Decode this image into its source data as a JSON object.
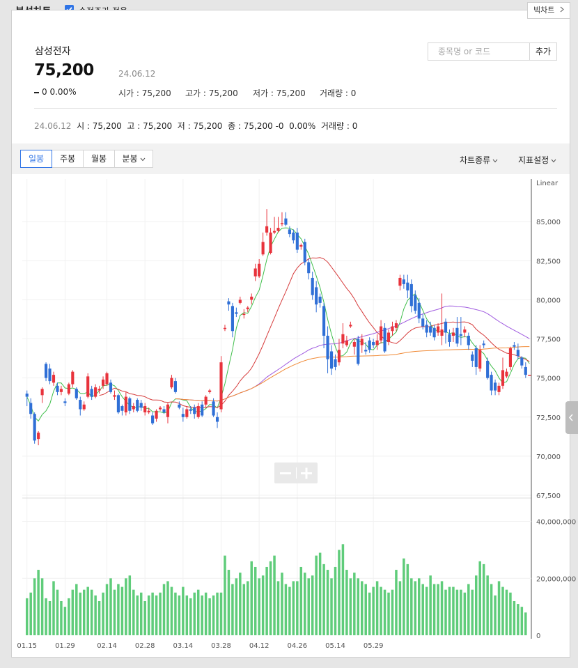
{
  "header": {
    "title": "분석차트",
    "adjusted_label": "수정주가 적용",
    "adjusted_checked": true,
    "big_chart_label": "빅차트"
  },
  "stock": {
    "name": "삼성전자",
    "price": "75,200",
    "date": "24.06.12",
    "change": "0",
    "change_pct": "0.00%",
    "open": "시가 : 75,200",
    "high": "고가 : 75,200",
    "low": "저가 : 75,200",
    "volume": "거래량 : 0"
  },
  "search": {
    "placeholder": "종목명 or 코드",
    "add_label": "추가"
  },
  "info_line": {
    "date": "24.06.12",
    "text": "시 : 75,200  고 : 75,200  저 : 75,200  종 : 75,200 -0  0.00%  거래량 : 0"
  },
  "toolbar": {
    "tabs": [
      "일봉",
      "주봉",
      "월봉",
      "분봉"
    ],
    "active_tab": "일봉",
    "chart_type_label": "차트종류",
    "indicator_label": "지표설정"
  },
  "colors": {
    "up": "#e8333c",
    "down": "#2f6fd6",
    "volume": "#5fcc7a",
    "accent": "#2f74e6"
  },
  "icons": [
    "checkbox-checked-icon",
    "chevron-right-icon",
    "chevron-down-icon",
    "minus-icon",
    "plus-icon",
    "chevron-left-icon"
  ],
  "chart_data": {
    "type": "candlestick",
    "price_scale_label": "Linear",
    "price_ticks": [
      "85,000",
      "82,500",
      "80,000",
      "77,500",
      "75,000",
      "72,500",
      "70,000",
      "67,500"
    ],
    "volume_ticks": [
      "40,000,000",
      "20,000,000",
      "0"
    ],
    "x_labels": [
      "01.15",
      "01.29",
      "02.14",
      "02.28",
      "03.14",
      "03.28",
      "04.12",
      "04.26",
      "05.14",
      "05.29"
    ],
    "candles": [
      [
        74000,
        73800,
        74200,
        73200
      ],
      [
        73400,
        72700,
        73700,
        72400
      ],
      [
        72700,
        71000,
        72800,
        70800
      ],
      [
        71100,
        71500,
        71600,
        70700
      ],
      [
        73900,
        74300,
        74400,
        73400
      ],
      [
        75900,
        75000,
        76000,
        74800
      ],
      [
        75600,
        74800,
        75900,
        74600
      ],
      [
        74700,
        75200,
        75400,
        74500
      ],
      [
        74500,
        74100,
        74700,
        73900
      ],
      [
        74100,
        74300,
        74500,
        73900
      ],
      [
        73500,
        73400,
        73700,
        73200
      ],
      [
        74000,
        74600,
        74700,
        73900
      ],
      [
        74600,
        75400,
        75500,
        74400
      ],
      [
        74300,
        73700,
        74400,
        73600
      ],
      [
        73600,
        73000,
        73800,
        72600
      ],
      [
        73000,
        73300,
        73500,
        72900
      ],
      [
        73800,
        75100,
        75300,
        73700
      ],
      [
        74300,
        73800,
        74500,
        73600
      ],
      [
        73800,
        74400,
        74600,
        73700
      ],
      [
        74200,
        74300,
        74500,
        74000
      ],
      [
        74500,
        74900,
        75100,
        74300
      ],
      [
        74600,
        75300,
        75400,
        74500
      ],
      [
        74700,
        74100,
        74900,
        74000
      ],
      [
        73800,
        73900,
        74200,
        73600
      ],
      [
        73900,
        72800,
        74000,
        72700
      ],
      [
        73200,
        72900,
        73300,
        72600
      ],
      [
        72800,
        73800,
        74100,
        72600
      ],
      [
        73700,
        72900,
        73800,
        72700
      ],
      [
        73000,
        73200,
        73400,
        72800
      ],
      [
        73600,
        72900,
        73700,
        72800
      ],
      [
        73400,
        73100,
        73600,
        72900
      ],
      [
        72800,
        73200,
        73400,
        72600
      ],
      [
        72800,
        72900,
        73100,
        72700
      ],
      [
        72600,
        72100,
        72800,
        72000
      ],
      [
        72400,
        72900,
        73000,
        72200
      ],
      [
        73000,
        73100,
        73200,
        72900
      ],
      [
        73000,
        72800,
        73200,
        72700
      ],
      [
        72500,
        73300,
        73400,
        72100
      ],
      [
        74400,
        75000,
        75200,
        74300
      ],
      [
        74800,
        74100,
        75000,
        74000
      ],
      [
        73300,
        73100,
        73500,
        73000
      ],
      [
        72700,
        72500,
        73100,
        72200
      ],
      [
        72500,
        73000,
        73200,
        72400
      ],
      [
        73000,
        72900,
        73200,
        72700
      ],
      [
        73100,
        72700,
        73300,
        72400
      ],
      [
        72500,
        73200,
        73400,
        72400
      ],
      [
        73300,
        72600,
        73500,
        72500
      ],
      [
        73300,
        73800,
        73900,
        73100
      ],
      [
        74100,
        74200,
        74300,
        74000
      ],
      [
        73500,
        72600,
        73700,
        72500
      ],
      [
        72500,
        72200,
        72800,
        71800
      ],
      [
        73000,
        76000,
        76400,
        72800
      ],
      [
        78200,
        78200,
        78400,
        78000
      ],
      [
        79900,
        79700,
        80100,
        79300
      ],
      [
        79600,
        78000,
        79800,
        77600
      ],
      [
        79200,
        79100,
        79500,
        78900
      ],
      [
        79800,
        80000,
        80200,
        79700
      ],
      [
        79100,
        79100,
        79400,
        78800
      ],
      [
        79400,
        79500,
        79600,
        79200
      ],
      [
        80000,
        80200,
        80400,
        79700
      ],
      [
        81500,
        82000,
        82300,
        81200
      ],
      [
        81500,
        82300,
        82600,
        81400
      ],
      [
        82900,
        83700,
        84300,
        82800
      ],
      [
        84300,
        84700,
        85800,
        84100
      ],
      [
        83000,
        84300,
        84600,
        82900
      ],
      [
        84300,
        84400,
        85300,
        84200
      ],
      [
        84400,
        84600,
        85300,
        84300
      ],
      [
        84900,
        84900,
        85600,
        84700
      ],
      [
        85200,
        84800,
        85600,
        84700
      ],
      [
        84500,
        84200,
        84700,
        84000
      ],
      [
        84300,
        83800,
        84500,
        83600
      ],
      [
        84300,
        83200,
        84600,
        83000
      ],
      [
        83400,
        83500,
        83600,
        83200
      ],
      [
        83700,
        82400,
        83900,
        82200
      ],
      [
        82400,
        81700,
        82600,
        81300
      ],
      [
        81400,
        80300,
        81800,
        80000
      ],
      [
        80800,
        79700,
        81200,
        79200
      ],
      [
        80200,
        79800,
        80400,
        79500
      ],
      [
        79600,
        77700,
        79800,
        76900
      ],
      [
        77700,
        76200,
        78300,
        75300
      ],
      [
        76700,
        75600,
        77100,
        75200
      ],
      [
        76200,
        75700,
        76500,
        75500
      ],
      [
        76000,
        76800,
        77500,
        75800
      ],
      [
        77200,
        77800,
        78500,
        76900
      ],
      [
        77100,
        77400,
        77700,
        77000
      ],
      [
        78300,
        78400,
        78600,
        78200
      ],
      [
        77000,
        77300,
        77500,
        76500
      ],
      [
        77500,
        75900,
        77700,
        75800
      ],
      [
        77100,
        77500,
        77800,
        76600
      ],
      [
        76800,
        76700,
        77300,
        76500
      ],
      [
        77400,
        76800,
        77600,
        76600
      ],
      [
        77300,
        77100,
        77500,
        76900
      ],
      [
        77100,
        77400,
        77800,
        76800
      ],
      [
        77400,
        78300,
        78700,
        77200
      ],
      [
        78200,
        76700,
        78500,
        76600
      ],
      [
        77300,
        77900,
        78100,
        77100
      ],
      [
        78000,
        78300,
        78600,
        77700
      ],
      [
        78200,
        78500,
        78700,
        78000
      ],
      [
        80900,
        81400,
        81600,
        80600
      ],
      [
        81300,
        81000,
        81600,
        80700
      ],
      [
        81100,
        80600,
        81600,
        80100
      ],
      [
        81000,
        79600,
        81300,
        79200
      ],
      [
        80300,
        79300,
        80600,
        79100
      ],
      [
        79800,
        78800,
        80100,
        78500
      ],
      [
        78800,
        78300,
        79100,
        78100
      ],
      [
        78400,
        77900,
        78700,
        77600
      ],
      [
        78300,
        77900,
        78600,
        77700
      ],
      [
        78200,
        77600,
        78400,
        77400
      ],
      [
        77900,
        78300,
        78500,
        77700
      ],
      [
        77700,
        78100,
        80400,
        77100
      ],
      [
        78600,
        77900,
        78800,
        77200
      ],
      [
        77800,
        77300,
        78100,
        77000
      ],
      [
        77700,
        77900,
        78200,
        77300
      ],
      [
        78200,
        77200,
        78900,
        77000
      ],
      [
        77800,
        77700,
        78900,
        77100
      ],
      [
        77900,
        78100,
        78300,
        77600
      ],
      [
        77700,
        77100,
        77900,
        76800
      ],
      [
        76500,
        76100,
        76700,
        75700
      ],
      [
        76900,
        75700,
        77100,
        75200
      ],
      [
        75600,
        76800,
        77100,
        75400
      ],
      [
        77200,
        77100,
        77400,
        76900
      ],
      [
        76100,
        75000,
        76300,
        74900
      ],
      [
        75200,
        74200,
        75400,
        73900
      ],
      [
        74700,
        74200,
        74900,
        73900
      ],
      [
        74100,
        74500,
        74700,
        73900
      ],
      [
        74500,
        75500,
        76300,
        74300
      ],
      [
        75100,
        75400,
        75600,
        75000
      ],
      [
        75700,
        76900,
        77000,
        75500
      ],
      [
        77100,
        77000,
        77300,
        76800
      ],
      [
        76800,
        76400,
        77200,
        76200
      ],
      [
        76300,
        75800,
        76400,
        75600
      ],
      [
        75700,
        75200,
        76000,
        75000
      ],
      [
        75200,
        75200,
        75200,
        75200
      ]
    ],
    "volume": [
      13,
      15,
      20,
      23,
      20,
      13,
      12,
      19,
      16,
      12,
      10,
      13,
      16,
      18,
      15,
      16,
      17,
      16,
      14,
      12,
      15,
      18,
      20,
      16,
      18,
      17,
      20,
      21,
      16,
      14,
      15,
      12,
      14,
      15,
      14,
      15,
      18,
      19,
      17,
      15,
      14,
      17,
      14,
      13,
      15,
      16,
      14,
      15,
      13,
      14,
      15,
      15,
      28,
      23,
      18,
      20,
      22,
      18,
      19,
      26,
      24,
      20,
      21,
      24,
      26,
      28,
      19,
      22,
      18,
      17,
      19,
      19,
      24,
      22,
      20,
      21,
      28,
      29,
      25,
      23,
      20,
      24,
      30,
      32,
      23,
      20,
      22,
      20,
      19,
      18,
      15,
      17,
      19,
      17,
      16,
      15,
      16,
      23,
      19,
      27,
      25,
      20,
      19,
      20,
      18,
      17,
      21,
      18,
      18,
      19,
      16,
      17,
      17,
      16,
      16,
      15,
      18,
      16,
      21,
      26,
      25,
      21,
      18,
      14,
      19,
      17,
      16,
      15,
      12,
      11,
      10,
      8
    ],
    "ma_series": [
      {
        "color": "#3fbe4a",
        "period": 5
      },
      {
        "color": "#d63b3b",
        "period": 20
      },
      {
        "color": "#a05be0",
        "period": 60
      },
      {
        "color": "#f08a36",
        "period": 120
      }
    ]
  }
}
